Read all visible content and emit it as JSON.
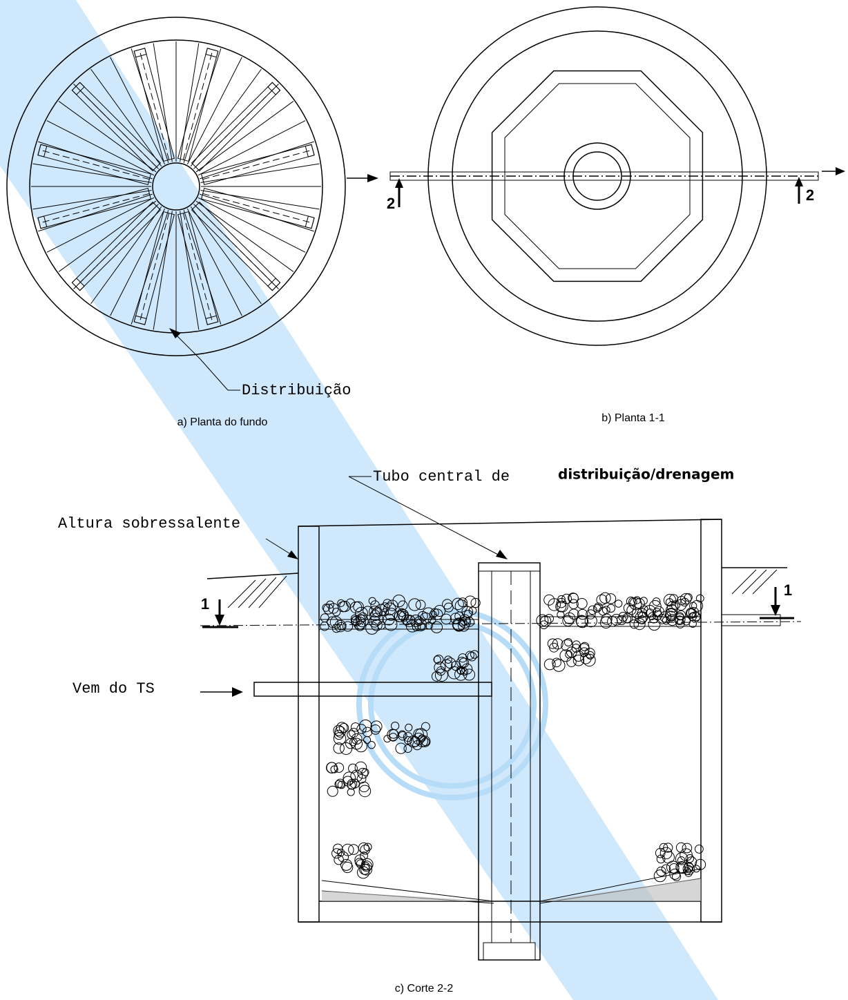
{
  "plan_bottom": {
    "label": "Distribuição",
    "caption": "a) Planta do fundo"
  },
  "plan_1_1": {
    "section_marks": [
      "2",
      "2"
    ],
    "caption": "b) Planta 1-1"
  },
  "section_2_2": {
    "tube_label": [
      "Tubo central de",
      "distribuição/drenagem"
    ],
    "freeboard_label": "Altura sobressalente",
    "inlet_label": "Vem do TS",
    "section_marks": [
      "1",
      "1"
    ],
    "caption": "c) Corte 2-2"
  }
}
